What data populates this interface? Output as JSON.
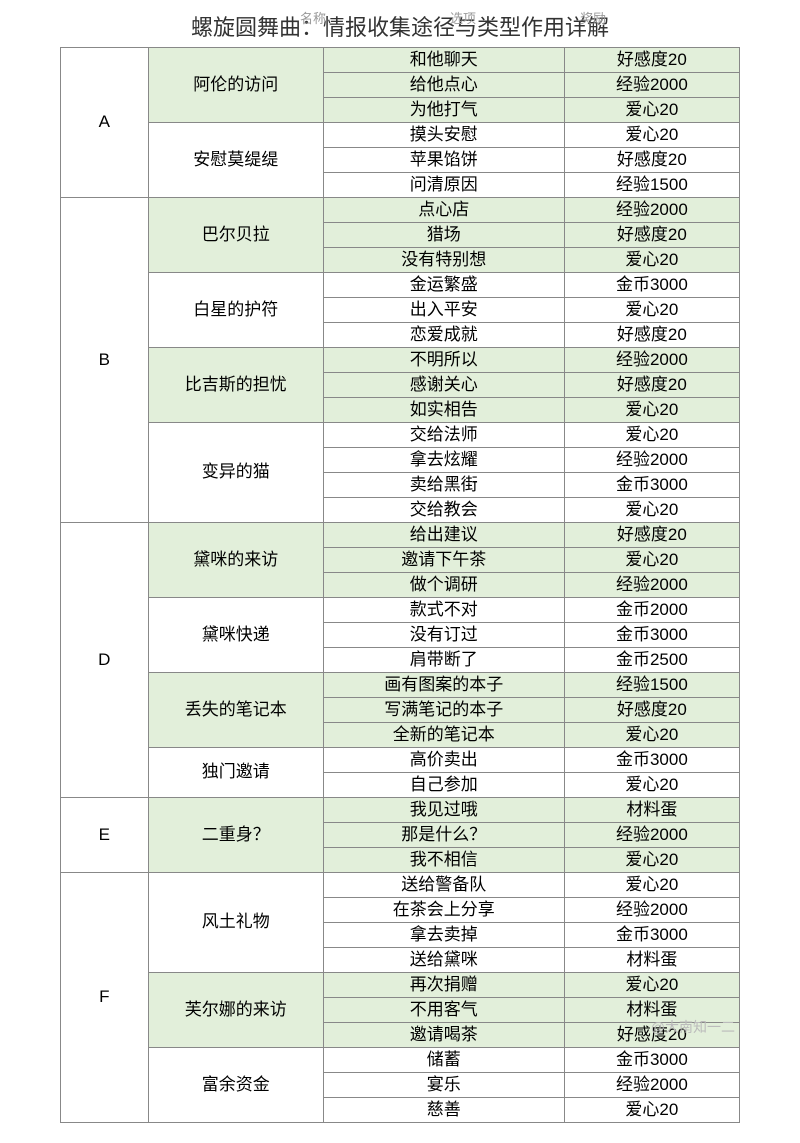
{
  "title": "螺旋圆舞曲：情报收集途径与类型作用详解",
  "header": {
    "c1": "名称",
    "c2": "选项",
    "c3": "奖励"
  },
  "watermark": "@大南知一二",
  "colors": {
    "green": "#e2efda",
    "white": "#ffffff",
    "border": "#888888"
  },
  "groups": [
    {
      "letter": "A",
      "events": [
        {
          "name": "阿伦的访问",
          "green": true,
          "rows": [
            {
              "option": "和他聊天",
              "reward": "好感度20"
            },
            {
              "option": "给他点心",
              "reward": "经验2000"
            },
            {
              "option": "为他打气",
              "reward": "爱心20"
            }
          ]
        },
        {
          "name": "安慰莫缇缇",
          "green": false,
          "rows": [
            {
              "option": "摸头安慰",
              "reward": "爱心20"
            },
            {
              "option": "苹果馅饼",
              "reward": "好感度20"
            },
            {
              "option": "问清原因",
              "reward": "经验1500"
            }
          ]
        }
      ]
    },
    {
      "letter": "B",
      "events": [
        {
          "name": "巴尔贝拉",
          "green": true,
          "rows": [
            {
              "option": "点心店",
              "reward": "经验2000"
            },
            {
              "option": "猎场",
              "reward": "好感度20"
            },
            {
              "option": "没有特别想",
              "reward": "爱心20"
            }
          ]
        },
        {
          "name": "白星的护符",
          "green": false,
          "rows": [
            {
              "option": "金运繁盛",
              "reward": "金币3000"
            },
            {
              "option": "出入平安",
              "reward": "爱心20"
            },
            {
              "option": "恋爱成就",
              "reward": "好感度20"
            }
          ]
        },
        {
          "name": "比吉斯的担忧",
          "green": true,
          "rows": [
            {
              "option": "不明所以",
              "reward": "经验2000"
            },
            {
              "option": "感谢关心",
              "reward": "好感度20"
            },
            {
              "option": "如实相告",
              "reward": "爱心20"
            }
          ]
        },
        {
          "name": "变异的猫",
          "green": false,
          "rows": [
            {
              "option": "交给法师",
              "reward": "爱心20"
            },
            {
              "option": "拿去炫耀",
              "reward": "经验2000"
            },
            {
              "option": "卖给黑街",
              "reward": "金币3000"
            },
            {
              "option": "交给教会",
              "reward": "爱心20"
            }
          ]
        }
      ]
    },
    {
      "letter": "D",
      "events": [
        {
          "name": "黛咪的来访",
          "green": true,
          "rows": [
            {
              "option": "给出建议",
              "reward": "好感度20"
            },
            {
              "option": "邀请下午茶",
              "reward": "爱心20"
            },
            {
              "option": "做个调研",
              "reward": "经验2000"
            }
          ]
        },
        {
          "name": "黛咪快递",
          "green": false,
          "rows": [
            {
              "option": "款式不对",
              "reward": "金币2000"
            },
            {
              "option": "没有订过",
              "reward": "金币3000"
            },
            {
              "option": "肩带断了",
              "reward": "金币2500"
            }
          ]
        },
        {
          "name": "丢失的笔记本",
          "green": true,
          "rows": [
            {
              "option": "画有图案的本子",
              "reward": "经验1500"
            },
            {
              "option": "写满笔记的本子",
              "reward": "好感度20"
            },
            {
              "option": "全新的笔记本",
              "reward": "爱心20"
            }
          ]
        },
        {
          "name": "独门邀请",
          "green": false,
          "rows": [
            {
              "option": "高价卖出",
              "reward": "金币3000"
            },
            {
              "option": "自己参加",
              "reward": "爱心20"
            }
          ]
        }
      ]
    },
    {
      "letter": "E",
      "events": [
        {
          "name": "二重身？",
          "green": true,
          "rows": [
            {
              "option": "我见过哦",
              "reward": "材料蛋"
            },
            {
              "option": "那是什么？",
              "reward": "经验2000"
            },
            {
              "option": "我不相信",
              "reward": "爱心20"
            }
          ]
        }
      ]
    },
    {
      "letter": "F",
      "events": [
        {
          "name": "风土礼物",
          "green": false,
          "rows": [
            {
              "option": "送给警备队",
              "reward": "爱心20"
            },
            {
              "option": "在茶会上分享",
              "reward": "经验2000"
            },
            {
              "option": "拿去卖掉",
              "reward": "金币3000"
            },
            {
              "option": "送给黛咪",
              "reward": "材料蛋"
            }
          ]
        },
        {
          "name": "芙尔娜的来访",
          "green": true,
          "rows": [
            {
              "option": "再次捐赠",
              "reward": "爱心20"
            },
            {
              "option": "不用客气",
              "reward": "材料蛋"
            },
            {
              "option": "邀请喝茶",
              "reward": "好感度20"
            }
          ]
        },
        {
          "name": "富余资金",
          "green": false,
          "rows": [
            {
              "option": "储蓄",
              "reward": "金币3000"
            },
            {
              "option": "宴乐",
              "reward": "经验2000"
            },
            {
              "option": "慈善",
              "reward": "爱心20"
            }
          ]
        }
      ]
    }
  ]
}
